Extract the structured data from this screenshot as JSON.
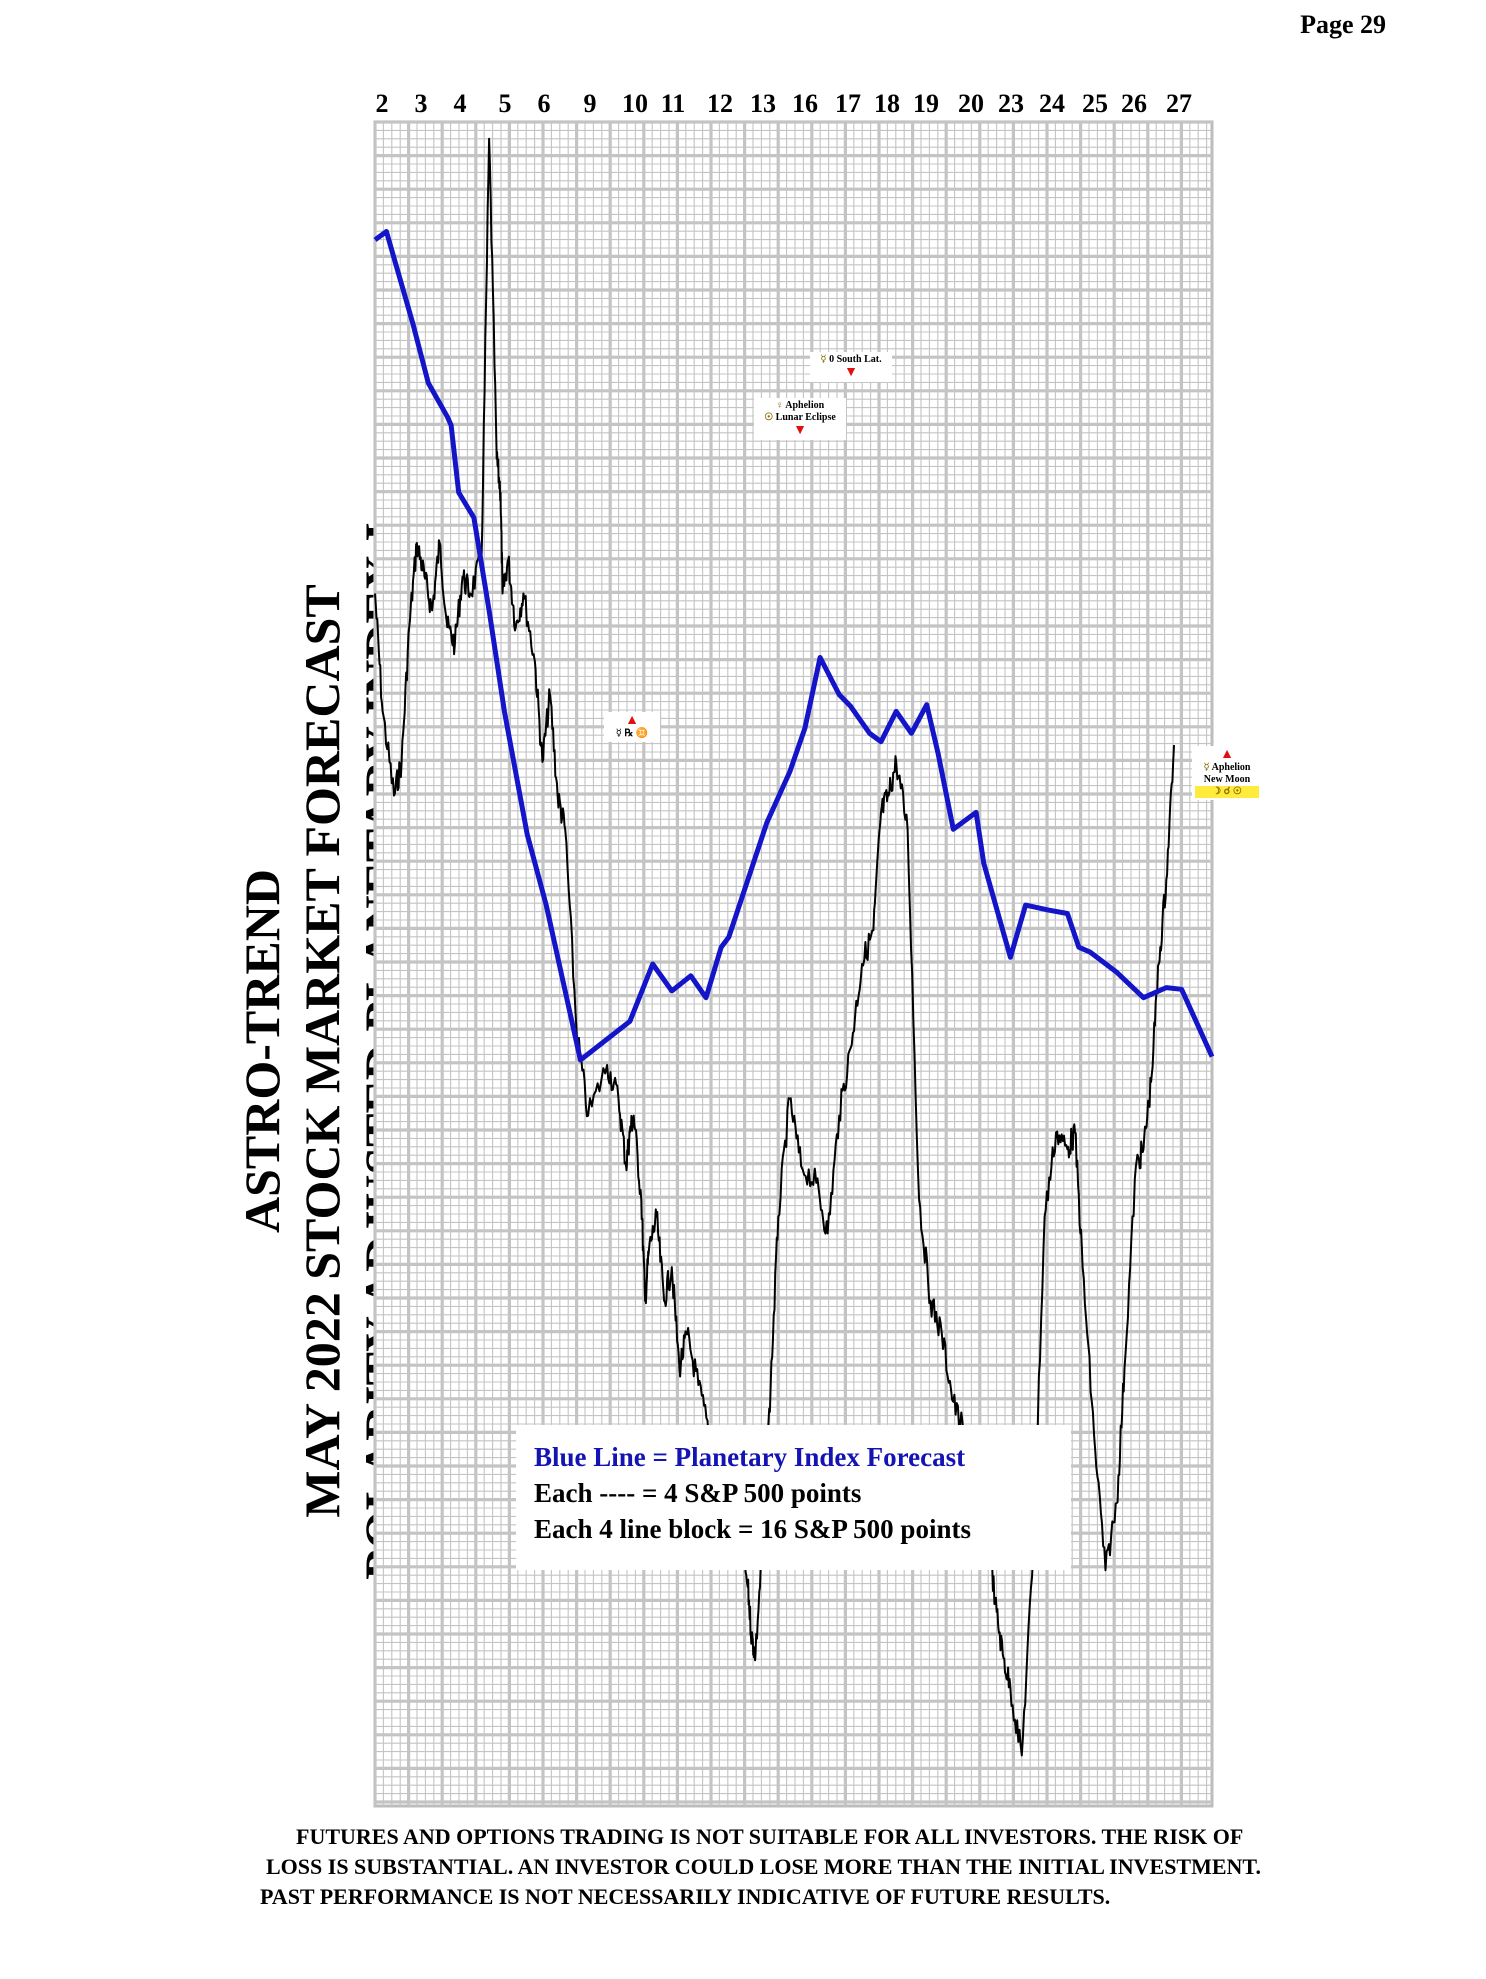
{
  "page": {
    "number": "Page  29"
  },
  "titles": {
    "line1": "ASTRO-TREND",
    "line2": "MAY 2022  STOCK MARKET FORECAST",
    "line3": "POLARITY ADJUSTED PLANETARY INDEX I"
  },
  "legend": {
    "line1": "Blue Line = Planetary Index Forecast",
    "line2": "Each ---- =   4 S&P 500 points",
    "line3": "Each 4 line block =  16  S&P 500 points"
  },
  "annotations": {
    "south_lat": {
      "symbol": "☿",
      "text": "0 South Lat."
    },
    "aphelion_eclipse": {
      "symbol1": "♀",
      "text1": "Aphelion",
      "symbol2": "☉",
      "text2": "Lunar Eclipse"
    },
    "station": {
      "text": "☿ ℞ ♊"
    },
    "aphelion_newmoon": {
      "symbol": "☿",
      "text1": "Aphelion",
      "text2": "New Moon",
      "text3": "☽ ☌ ☉"
    }
  },
  "disclaimer": {
    "line1": "FUTURES AND OPTIONS TRADING IS NOT SUITABLE FOR ALL INVESTORS.  THE RISK OF",
    "line2": "LOSS IS SUBSTANTIAL.  AN INVESTOR COULD LOSE MORE THAN THE INITIAL INVESTMENT.",
    "line3": "PAST PERFORMANCE IS NOT NECESSARILY INDICATIVE OF FUTURE RESULTS."
  },
  "chart_data": {
    "type": "line",
    "title": "MAY 2022  STOCK MARKET FORECAST",
    "x_labels": [
      "2",
      "3",
      "4",
      "5",
      "6",
      "9",
      "10",
      "11",
      "12",
      "13",
      "16",
      "17",
      "18",
      "19",
      "20",
      "23",
      "24",
      "25",
      "26",
      "27"
    ],
    "xlim": [
      0,
      22
    ],
    "ylim": [
      0,
      100
    ],
    "grid": true,
    "series": [
      {
        "name": "Blue Line = Planetary Index Forecast",
        "color": "#1414c8",
        "x": [
          0.0,
          0.3,
          1.0,
          1.4,
          1.9,
          2.0,
          2.2,
          2.6,
          3.0,
          3.4,
          4.0,
          4.5,
          5.4,
          6.7,
          7.3,
          7.8,
          8.3,
          8.7,
          9.1,
          9.3,
          10.3,
          10.9,
          11.3,
          11.7,
          12.2,
          12.5,
          13.0,
          13.3,
          13.7,
          14.1,
          14.5,
          14.8,
          15.2,
          15.8,
          16.0,
          16.7,
          17.1,
          17.7,
          18.2,
          18.5,
          18.8,
          19.5,
          20.2,
          20.8,
          21.2,
          22.0
        ],
        "y": [
          93,
          93.5,
          88,
          84.5,
          82.5,
          82,
          78,
          76.5,
          71,
          65,
          57.7,
          53.5,
          44.3,
          46.6,
          50,
          48.4,
          49.3,
          48,
          51,
          51.6,
          58.4,
          61.4,
          64,
          68.2,
          66,
          65.3,
          63.7,
          63.2,
          65,
          63.7,
          65.4,
          62.5,
          58,
          59,
          56,
          50.4,
          53.5,
          53.2,
          53,
          51,
          50.7,
          49.5,
          48,
          48.6,
          48.5,
          44.5
        ]
      },
      {
        "name": "",
        "color": "#000000",
        "x": [
          0.0,
          0.2,
          0.5,
          0.7,
          0.9,
          1.1,
          1.3,
          1.5,
          1.7,
          1.9,
          2.1,
          2.3,
          2.5,
          2.8,
          3.0,
          3.2,
          3.3,
          3.35,
          3.5,
          3.7,
          3.9,
          4.2,
          4.4,
          4.6,
          4.8,
          5.0,
          5.3,
          5.6,
          6.1,
          6.4,
          6.6,
          6.7,
          6.8,
          7.0,
          7.1,
          7.2,
          7.4,
          7.6,
          7.8,
          8.0,
          8.2,
          8.5,
          8.8,
          9.0,
          9.3,
          9.6,
          9.8,
          9.9,
          10.0,
          10.2,
          10.4,
          10.6,
          10.9,
          11.2,
          11.6,
          11.9,
          12.2,
          12.5,
          12.8,
          13.1,
          13.3,
          13.5,
          13.7,
          14.0,
          14.3,
          14.6,
          14.9,
          15.2,
          15.5,
          15.8,
          16.1,
          16.3,
          16.5,
          16.7,
          17.0,
          17.3,
          17.6,
          17.9,
          18.2,
          18.4,
          18.6,
          18.9,
          19.2,
          19.5,
          19.7,
          20.0,
          20.2,
          20.4,
          20.6,
          20.8,
          21.0
        ],
        "y": [
          72,
          65,
          60,
          62,
          70,
          75,
          73,
          71,
          75,
          70,
          69,
          73,
          72,
          74,
          99,
          80,
          78,
          72,
          74,
          70,
          72,
          68,
          62,
          66,
          60,
          58,
          46,
          41,
          44,
          42,
          38,
          40,
          41,
          36,
          30,
          33,
          35,
          30,
          32,
          26,
          28,
          25,
          22,
          20,
          18,
          16,
          13,
          10,
          9,
          16,
          25,
          35,
          42,
          38,
          37,
          34,
          41,
          45,
          50,
          52,
          59,
          60,
          62,
          58,
          36,
          30,
          28,
          24,
          22,
          20,
          17,
          12,
          9,
          7,
          3,
          15,
          35,
          40,
          39,
          40,
          32,
          22,
          14,
          18,
          26,
          38,
          39,
          43,
          50,
          55,
          63
        ]
      }
    ]
  }
}
